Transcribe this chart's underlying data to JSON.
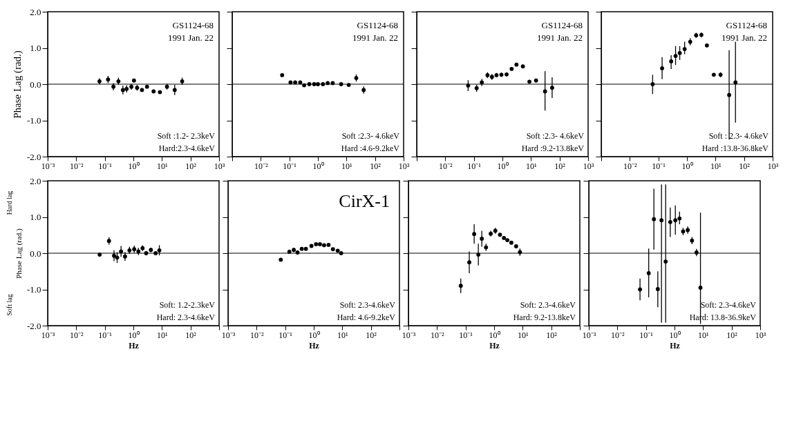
{
  "chart_data": [
    {
      "type": "scatter",
      "ylabel": "Phase Lag (rad.)",
      "annotations": [
        "GS1124-68",
        "1991 Jan. 22",
        "Soft :1.2- 2.3keV",
        "Hard:2.3-4.6keV"
      ],
      "log": "x",
      "xlim": [
        0.001,
        1000
      ],
      "ylim": [
        -2,
        2
      ],
      "xticks": [
        {
          "value": 0.001,
          "label": "10⁻³"
        },
        {
          "value": 0.01,
          "label": "10⁻²"
        },
        {
          "value": 0.1,
          "label": "10⁻¹"
        },
        {
          "value": 1,
          "label": "10⁰"
        },
        {
          "value": 10,
          "label": "10¹"
        },
        {
          "value": 100,
          "label": "10²"
        },
        {
          "value": 1000,
          "label": "10³"
        }
      ],
      "yticks": [
        {
          "value": -2,
          "label": "-2.0"
        },
        {
          "value": -1,
          "label": "-1.0"
        },
        {
          "value": 0,
          "label": "0.0"
        },
        {
          "value": 1,
          "label": "1.0"
        },
        {
          "value": 2,
          "label": "2.0"
        }
      ],
      "grid": false,
      "marker": "circle",
      "ref_lines": [
        {
          "axis": "y",
          "value": 0
        }
      ],
      "series": [
        {
          "color": "#000000",
          "x": [
            0.065,
            0.13,
            0.2,
            0.3,
            0.43,
            0.58,
            0.85,
            1.05,
            1.35,
            2.0,
            3.0,
            5.1,
            8.5,
            15,
            28,
            51
          ],
          "values": [
            0.08,
            0.13,
            -0.07,
            0.08,
            -0.16,
            -0.13,
            -0.07,
            0.1,
            -0.1,
            -0.16,
            -0.07,
            -0.2,
            -0.22,
            -0.07,
            -0.16,
            0.08
          ],
          "errors": [
            0.08,
            0.1,
            0.1,
            0.1,
            0.12,
            0.1,
            0.08,
            null,
            0.08,
            0.05,
            null,
            null,
            null,
            0.08,
            0.14,
            0.1
          ]
        }
      ]
    },
    {
      "type": "scatter",
      "annotations": [
        "GS1124-68",
        "1991 Jan. 22",
        "Soft :2.3- 4.6keV",
        "Hard :4.6-9.2keV"
      ],
      "log": "x",
      "xlim": [
        0.001,
        1000
      ],
      "ylim": [
        -2,
        2
      ],
      "xticks": [
        {
          "value": 0.001,
          "label": null
        },
        {
          "value": 0.01,
          "label": "10⁻²"
        },
        {
          "value": 0.1,
          "label": "10⁻¹"
        },
        {
          "value": 1,
          "label": "10⁰"
        },
        {
          "value": 10,
          "label": "10¹"
        },
        {
          "value": 100,
          "label": "10²"
        },
        {
          "value": 1000,
          "label": "10³"
        }
      ],
      "yticks": [
        {
          "value": -2,
          "label": null
        },
        {
          "value": -1,
          "label": null
        },
        {
          "value": 0,
          "label": null
        },
        {
          "value": 1,
          "label": null
        },
        {
          "value": 2,
          "label": null
        }
      ],
      "tick_labels": "x",
      "grid": false,
      "marker": "circle",
      "ref_lines": [
        {
          "axis": "y",
          "value": 0
        }
      ],
      "series": [
        {
          "color": "#000000",
          "x": [
            0.056,
            0.11,
            0.16,
            0.24,
            0.33,
            0.5,
            0.74,
            1.0,
            1.5,
            2.2,
            3.3,
            6.5,
            12,
            22,
            40
          ],
          "values": [
            0.25,
            0.05,
            0.05,
            0.05,
            -0.03,
            0.0,
            0.0,
            0.0,
            0.0,
            0.03,
            0.03,
            0.0,
            -0.02,
            0.17,
            -0.16
          ],
          "errors": [
            null,
            null,
            null,
            null,
            null,
            null,
            null,
            null,
            null,
            null,
            null,
            null,
            null,
            0.1,
            0.1
          ]
        }
      ]
    },
    {
      "type": "scatter",
      "annotations": [
        "GS1124-68",
        "1991 Jan. 22",
        "Soft :2.3- 4.6keV",
        "Hard :9.2-13.8keV"
      ],
      "log": "x",
      "xlim": [
        0.001,
        1000
      ],
      "ylim": [
        -2,
        2
      ],
      "xticks": [
        {
          "value": 0.001,
          "label": null
        },
        {
          "value": 0.01,
          "label": "10⁻²"
        },
        {
          "value": 0.1,
          "label": "10⁻¹"
        },
        {
          "value": 1,
          "label": "10⁰"
        },
        {
          "value": 10,
          "label": "10¹"
        },
        {
          "value": 100,
          "label": "10²"
        },
        {
          "value": 1000,
          "label": "10³"
        }
      ],
      "yticks": [
        {
          "value": -2,
          "label": null
        },
        {
          "value": -1,
          "label": null
        },
        {
          "value": 0,
          "label": null
        },
        {
          "value": 1,
          "label": null
        },
        {
          "value": 2,
          "label": null
        }
      ],
      "tick_labels": "x",
      "grid": false,
      "marker": "circle",
      "ref_lines": [
        {
          "axis": "y",
          "value": 0
        }
      ],
      "series": [
        {
          "color": "#000000",
          "x": [
            0.063,
            0.125,
            0.19,
            0.3,
            0.43,
            0.62,
            0.92,
            1.4,
            2.1,
            3.1,
            5.2,
            8.8,
            15,
            31,
            55
          ],
          "values": [
            -0.04,
            -0.11,
            0.05,
            0.25,
            0.2,
            0.25,
            0.26,
            0.27,
            0.42,
            0.54,
            0.49,
            0.07,
            0.1,
            -0.2,
            -0.1
          ],
          "errors": [
            0.15,
            0.1,
            0.1,
            0.08,
            0.08,
            0.06,
            0.06,
            0.05,
            null,
            null,
            null,
            null,
            null,
            [
              -0.73,
              0.36
            ],
            [
              -0.38,
              0.19
            ]
          ]
        }
      ]
    },
    {
      "type": "scatter",
      "annotations": [
        "GS1124-68",
        "1991 Jan. 22",
        "Soft : 2.3- 4.6keV",
        "Hard :13.8-36.8keV"
      ],
      "log": "x",
      "xlim": [
        0.001,
        1000
      ],
      "ylim": [
        -2,
        2
      ],
      "xticks": [
        {
          "value": 0.001,
          "label": null
        },
        {
          "value": 0.01,
          "label": "10⁻²"
        },
        {
          "value": 0.1,
          "label": "10⁻¹"
        },
        {
          "value": 1,
          "label": "10⁰"
        },
        {
          "value": 10,
          "label": "10¹"
        },
        {
          "value": 100,
          "label": "10²"
        },
        {
          "value": 1000,
          "label": "10³"
        }
      ],
      "yticks": [
        {
          "value": -2,
          "label": null
        },
        {
          "value": -1,
          "label": null
        },
        {
          "value": 0,
          "label": null
        },
        {
          "value": 1,
          "label": null
        },
        {
          "value": 2,
          "label": null
        }
      ],
      "tick_labels": "x",
      "grid": false,
      "marker": "circle",
      "ref_lines": [
        {
          "axis": "y",
          "value": 0
        }
      ],
      "series": [
        {
          "color": "#000000",
          "x": [
            0.063,
            0.135,
            0.28,
            0.4,
            0.56,
            0.83,
            1.3,
            2.1,
            3.2,
            5.0,
            8.7,
            15,
            30,
            50
          ],
          "values": [
            0.0,
            0.44,
            0.63,
            0.78,
            0.86,
            0.97,
            1.17,
            1.35,
            1.36,
            1.07,
            0.26,
            0.26,
            -0.3,
            0.05
          ],
          "errors": [
            [
              -0.27,
              0.26
            ],
            [
              0.14,
              0.75
            ],
            [
              0.42,
              0.8
            ],
            [
              0.53,
              1.05
            ],
            [
              0.67,
              1.05
            ],
            [
              0.83,
              1.17
            ],
            0.1,
            0.07,
            0.07,
            0.05,
            null,
            0.07,
            [
              -1.53,
              0.94
            ],
            [
              -1.06,
              1.17
            ]
          ]
        }
      ]
    },
    {
      "type": "scatter",
      "ylabel": "Phase Lag (rad.)",
      "xlabel": "Hz",
      "annotations": [
        "Hard lag",
        "Soft lag",
        "Soft: 1.2-2.3keV",
        "Hard: 2.3-4.6keV"
      ],
      "log": "x",
      "xlim": [
        0.001,
        1000
      ],
      "ylim": [
        -2,
        2
      ],
      "xticks": [
        {
          "value": 0.001,
          "label": "10⁻³"
        },
        {
          "value": 0.01,
          "label": "10⁻²"
        },
        {
          "value": 0.1,
          "label": "10⁻¹"
        },
        {
          "value": 1,
          "label": "10⁰"
        },
        {
          "value": 10,
          "label": "10¹"
        },
        {
          "value": 100,
          "label": "10²"
        },
        {
          "value": 1000,
          "label": null
        }
      ],
      "yticks": [
        {
          "value": -2,
          "label": "-2.0"
        },
        {
          "value": -1,
          "label": "-1.0"
        },
        {
          "value": 0,
          "label": "0.0"
        },
        {
          "value": 1,
          "label": "1.0"
        },
        {
          "value": 2,
          "label": "2.0"
        }
      ],
      "grid": false,
      "marker": "circle",
      "ref_lines": [
        {
          "axis": "y",
          "value": 0
        }
      ],
      "series": [
        {
          "color": "#000000",
          "x": [
            0.066,
            0.14,
            0.21,
            0.27,
            0.37,
            0.51,
            0.73,
            1.07,
            1.5,
            2.1,
            2.8,
            4.1,
            6.0,
            8.1
          ],
          "values": [
            -0.04,
            0.34,
            -0.07,
            -0.12,
            0.05,
            -0.09,
            0.08,
            0.11,
            0.05,
            0.14,
            0.0,
            0.09,
            0.0,
            0.08
          ],
          "errors": [
            0.04,
            0.1,
            0.15,
            0.15,
            0.15,
            0.12,
            0.1,
            0.1,
            0.1,
            0.08,
            0.06,
            0.06,
            0.04,
            0.14
          ]
        }
      ]
    },
    {
      "type": "scatter",
      "xlabel": "Hz",
      "annotations": [
        "CirX-1",
        "Soft: 2.3-4.6keV",
        "Hard: 4.6-9.2keV"
      ],
      "log": "x",
      "xlim": [
        0.001,
        1000
      ],
      "ylim": [
        -2,
        2
      ],
      "xticks": [
        {
          "value": 0.001,
          "label": "10⁻³"
        },
        {
          "value": 0.01,
          "label": "10⁻²"
        },
        {
          "value": 0.1,
          "label": "10⁻¹"
        },
        {
          "value": 1,
          "label": "10⁰"
        },
        {
          "value": 10,
          "label": "10¹"
        },
        {
          "value": 100,
          "label": "10²"
        },
        {
          "value": 1000,
          "label": null
        }
      ],
      "yticks": [
        {
          "value": -2,
          "label": null
        },
        {
          "value": -1,
          "label": null
        },
        {
          "value": 0,
          "label": null
        },
        {
          "value": 1,
          "label": null
        },
        {
          "value": 2,
          "label": null
        }
      ],
      "tick_labels": "x",
      "grid": false,
      "marker": "circle",
      "ref_lines": [
        {
          "axis": "y",
          "value": 0
        }
      ],
      "series": [
        {
          "color": "#000000",
          "x": [
            0.07,
            0.14,
            0.2,
            0.27,
            0.38,
            0.53,
            0.83,
            1.2,
            1.65,
            2.3,
            3.3,
            4.7,
            6.9,
            9.1
          ],
          "values": [
            -0.18,
            0.04,
            0.09,
            0.02,
            0.12,
            0.12,
            0.2,
            0.25,
            0.25,
            0.22,
            0.23,
            0.11,
            0.07,
            0.0
          ],
          "errors": [
            0.03,
            0.06,
            0.06,
            0.06,
            0.04,
            0.04,
            0.03,
            0.03,
            0.03,
            0.03,
            0.03,
            0.03,
            0.03,
            0.03
          ]
        }
      ]
    },
    {
      "type": "scatter",
      "xlabel": "Hz",
      "annotations": [
        "Soft: 2.3-4.6keV",
        "Hard: 9.2-13.8keV"
      ],
      "log": "x",
      "xlim": [
        0.001,
        1000
      ],
      "ylim": [
        -2,
        2
      ],
      "xticks": [
        {
          "value": 0.001,
          "label": "10⁻³"
        },
        {
          "value": 0.01,
          "label": "10⁻²"
        },
        {
          "value": 0.1,
          "label": "10⁻¹"
        },
        {
          "value": 1,
          "label": "10⁰"
        },
        {
          "value": 10,
          "label": "10¹"
        },
        {
          "value": 100,
          "label": "10²"
        },
        {
          "value": 1000,
          "label": null
        }
      ],
      "yticks": [
        {
          "value": -2,
          "label": null
        },
        {
          "value": -1,
          "label": null
        },
        {
          "value": 0,
          "label": null
        },
        {
          "value": 1,
          "label": null
        },
        {
          "value": 2,
          "label": null
        }
      ],
      "tick_labels": "x",
      "grid": false,
      "marker": "circle",
      "ref_lines": [
        {
          "axis": "y",
          "value": 0
        }
      ],
      "series": [
        {
          "color": "#000000",
          "x": [
            0.068,
            0.135,
            0.2,
            0.28,
            0.37,
            0.52,
            0.76,
            1.1,
            1.6,
            2.2,
            2.9,
            4.0,
            5.9,
            8.0
          ],
          "values": [
            -0.9,
            -0.25,
            0.53,
            -0.04,
            0.4,
            0.16,
            0.54,
            0.62,
            0.51,
            0.42,
            0.36,
            0.29,
            0.19,
            0.03
          ],
          "errors": [
            0.2,
            0.3,
            0.27,
            0.3,
            0.22,
            0.1,
            0.08,
            0.08,
            0.04,
            0.03,
            0.03,
            0.03,
            0.03,
            0.1
          ]
        }
      ]
    },
    {
      "type": "scatter",
      "xlabel": "Hz",
      "annotations": [
        "Soft: 2.3-4.6keV",
        "Hard: 13.8-36.9keV"
      ],
      "log": "x",
      "xlim": [
        0.001,
        1000
      ],
      "ylim": [
        -2,
        2
      ],
      "xticks": [
        {
          "value": 0.001,
          "label": "10⁻³"
        },
        {
          "value": 0.01,
          "label": "10⁻²"
        },
        {
          "value": 0.1,
          "label": "10⁻¹"
        },
        {
          "value": 1,
          "label": "10⁰"
        },
        {
          "value": 10,
          "label": "10¹"
        },
        {
          "value": 100,
          "label": "10²"
        },
        {
          "value": 1000,
          "label": "10³"
        }
      ],
      "yticks": [
        {
          "value": -2,
          "label": null
        },
        {
          "value": -1,
          "label": null
        },
        {
          "value": 0,
          "label": null
        },
        {
          "value": 1,
          "label": null
        },
        {
          "value": 2,
          "label": null
        }
      ],
      "tick_labels": "x",
      "grid": false,
      "marker": "circle",
      "ref_lines": [
        {
          "axis": "y",
          "value": 0
        }
      ],
      "series": [
        {
          "color": "#000000",
          "x": [
            0.062,
            0.125,
            0.19,
            0.26,
            0.35,
            0.49,
            0.71,
            1.07,
            1.5,
            2.0,
            2.9,
            4.1,
            5.9,
            8.1
          ],
          "values": [
            -1.0,
            -0.55,
            0.94,
            -0.99,
            0.91,
            -0.23,
            0.86,
            0.91,
            0.96,
            0.6,
            0.64,
            0.35,
            0.02,
            -0.95
          ],
          "errors": [
            0.3,
            [
              -1.22,
              0.13
            ],
            [
              0.1,
              1.78
            ],
            [
              -1.49,
              -0.5
            ],
            [
              -1.92,
              1.9
            ],
            [
              -1.92,
              1.9
            ],
            [
              0.45,
              1.26
            ],
            [
              0.51,
              1.32
            ],
            [
              0.8,
              1.15
            ],
            0.1,
            0.1,
            0.1,
            0.1,
            [
              -1.95,
              1.12
            ]
          ]
        }
      ]
    }
  ]
}
